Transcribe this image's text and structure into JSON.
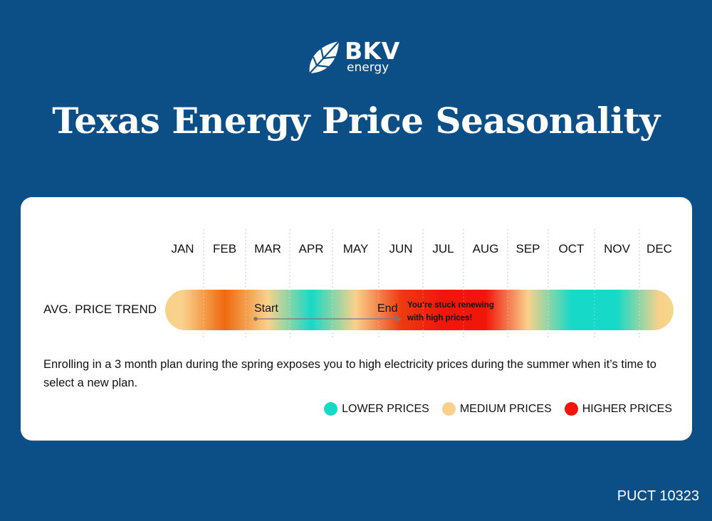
{
  "logo": {
    "brand": "BKV",
    "sub": "energy"
  },
  "title": "Texas Energy Price Seasonality",
  "chart_data": {
    "type": "heatmap",
    "categories": [
      "JAN",
      "FEB",
      "MAR",
      "APR",
      "MAY",
      "JUN",
      "JUL",
      "AUG",
      "SEP",
      "OCT",
      "NOV",
      "DEC"
    ],
    "row_label": "AVG. PRICE TREND",
    "levels": [
      "medium",
      "higher",
      "medium",
      "lower",
      "medium",
      "higher",
      "higher",
      "higher",
      "medium",
      "lower",
      "lower",
      "medium"
    ],
    "scale": {
      "lower": "#17d9c7",
      "medium": "#f9d18a",
      "higher": "#f0160a"
    },
    "annotations": {
      "start_label": "Start",
      "end_label": "End",
      "start_month": "MAR",
      "end_month": "JUN",
      "note_line1": "You’re stuck renewing",
      "note_line2": "with high prices!"
    },
    "grid": true
  },
  "description": "Enrolling in a 3 month plan during the spring exposes you to high electricity prices during the summer when it’s time to select a new plan.",
  "legend": [
    {
      "label": "LOWER PRICES",
      "color": "#17d9c7"
    },
    {
      "label": "MEDIUM PRICES",
      "color": "#f9d18a"
    },
    {
      "label": "HIGHER PRICES",
      "color": "#f0160a"
    }
  ],
  "footer": "PUCT 10323"
}
